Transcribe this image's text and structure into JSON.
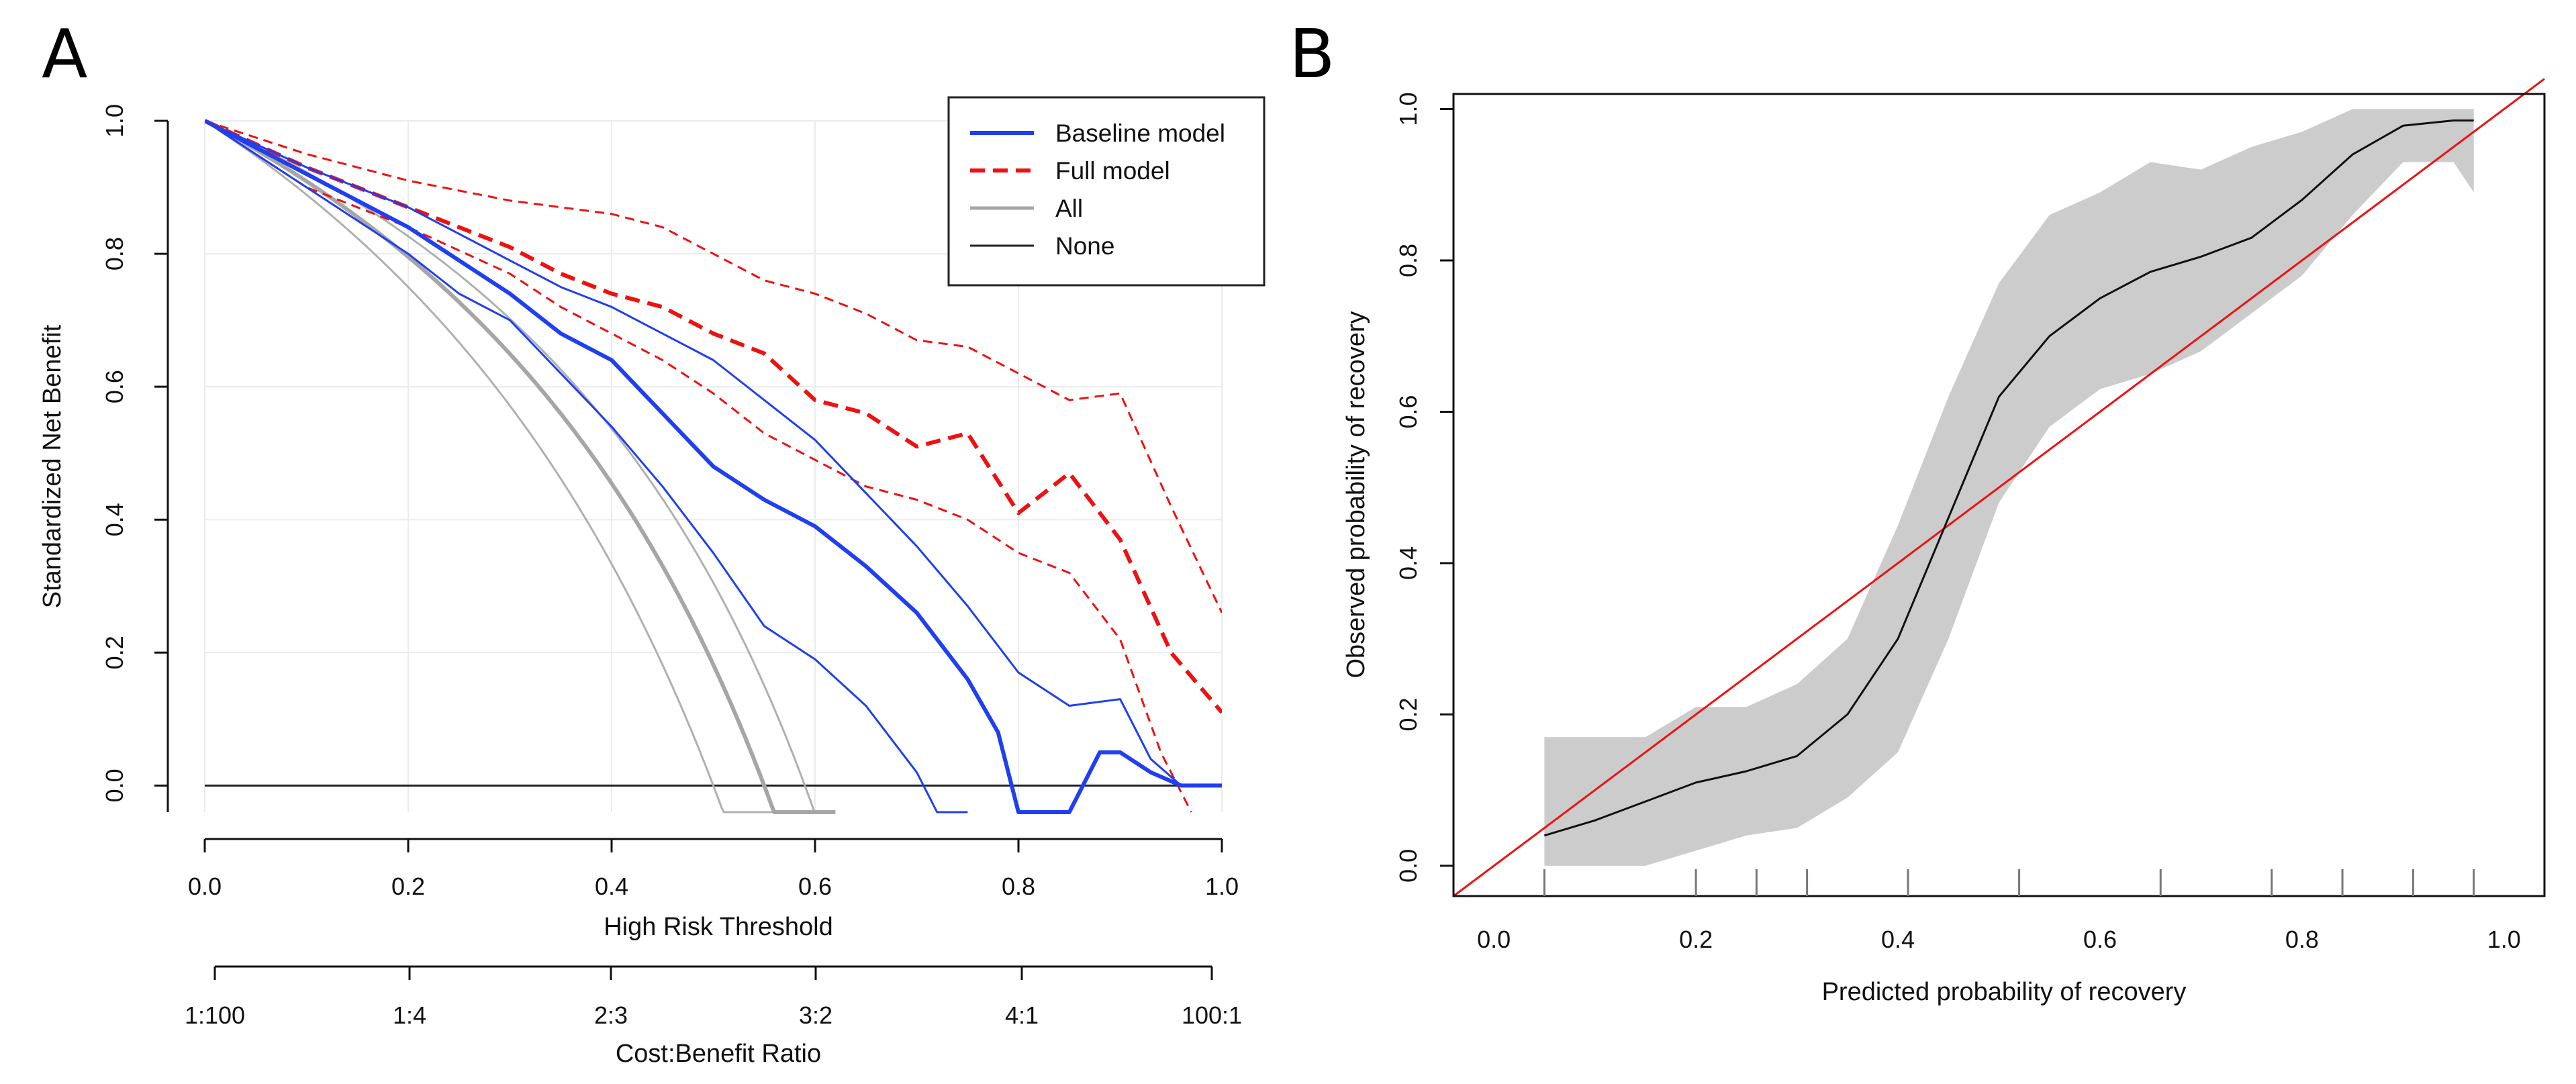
{
  "chart_data": [
    {
      "type": "line",
      "panel_label": "A",
      "title": "",
      "xlabel": "High Risk Threshold",
      "ylabel": "Standardized Net Benefit",
      "xlim": [
        0,
        1
      ],
      "ylim": [
        -0.04,
        1.0
      ],
      "grid": true,
      "x_ticks": [
        "0.0",
        "0.2",
        "0.4",
        "0.6",
        "0.8",
        "1.0"
      ],
      "y_ticks": [
        "0.0",
        "0.2",
        "0.4",
        "0.6",
        "0.8",
        "1.0"
      ],
      "secondary_axis": {
        "label": "Cost:Benefit Ratio",
        "ticks": [
          "1:100",
          "1:4",
          "2:3",
          "3:2",
          "4:1",
          "100:1"
        ]
      },
      "legend": {
        "position": "top-right",
        "entries": [
          "Baseline model",
          "Full model",
          "All",
          "None"
        ]
      },
      "series": [
        {
          "name": "Baseline model",
          "color": "#1f3ff0",
          "style": "solid",
          "width": "thick",
          "x": [
            0,
            0.1,
            0.2,
            0.3,
            0.35,
            0.4,
            0.45,
            0.5,
            0.55,
            0.6,
            0.65,
            0.7,
            0.75,
            0.78,
            0.8,
            0.85,
            0.88,
            0.9,
            0.93,
            0.96,
            1.0
          ],
          "y": [
            1.0,
            0.92,
            0.84,
            0.74,
            0.68,
            0.64,
            0.56,
            0.48,
            0.43,
            0.39,
            0.33,
            0.26,
            0.16,
            0.08,
            -0.04,
            -0.04,
            0.05,
            0.05,
            0.02,
            0.0,
            0.0
          ]
        },
        {
          "name": "Baseline upper CI",
          "color": "#1f3ff0",
          "style": "solid",
          "width": "thin",
          "x": [
            0,
            0.1,
            0.2,
            0.3,
            0.35,
            0.4,
            0.45,
            0.5,
            0.55,
            0.6,
            0.65,
            0.7,
            0.75,
            0.8,
            0.85,
            0.9,
            0.93,
            0.96,
            1.0
          ],
          "y": [
            1.0,
            0.93,
            0.87,
            0.79,
            0.75,
            0.72,
            0.68,
            0.64,
            0.58,
            0.52,
            0.44,
            0.36,
            0.27,
            0.17,
            0.12,
            0.13,
            0.04,
            0.0,
            0.0
          ]
        },
        {
          "name": "Baseline lower CI",
          "color": "#1f3ff0",
          "style": "solid",
          "width": "thin",
          "x": [
            0,
            0.1,
            0.2,
            0.25,
            0.3,
            0.35,
            0.4,
            0.45,
            0.5,
            0.55,
            0.6,
            0.65,
            0.7,
            0.72,
            0.75
          ],
          "y": [
            1.0,
            0.9,
            0.8,
            0.74,
            0.7,
            0.62,
            0.54,
            0.45,
            0.35,
            0.24,
            0.19,
            0.12,
            0.02,
            -0.04,
            -0.04
          ]
        },
        {
          "name": "Full model",
          "color": "#ee1111",
          "style": "dashed",
          "width": "thick",
          "x": [
            0,
            0.1,
            0.2,
            0.3,
            0.35,
            0.4,
            0.45,
            0.5,
            0.55,
            0.6,
            0.65,
            0.7,
            0.75,
            0.8,
            0.85,
            0.9,
            0.95,
            1.0
          ],
          "y": [
            1.0,
            0.93,
            0.87,
            0.81,
            0.77,
            0.74,
            0.72,
            0.68,
            0.65,
            0.58,
            0.56,
            0.51,
            0.53,
            0.41,
            0.47,
            0.37,
            0.2,
            0.11
          ]
        },
        {
          "name": "Full model upper CI",
          "color": "#ee1111",
          "style": "dashed",
          "width": "thin",
          "x": [
            0,
            0.1,
            0.2,
            0.3,
            0.35,
            0.4,
            0.45,
            0.5,
            0.55,
            0.6,
            0.65,
            0.7,
            0.75,
            0.8,
            0.85,
            0.9,
            0.95,
            1.0
          ],
          "y": [
            1.0,
            0.95,
            0.91,
            0.88,
            0.87,
            0.86,
            0.84,
            0.8,
            0.76,
            0.74,
            0.71,
            0.67,
            0.66,
            0.62,
            0.58,
            0.59,
            0.42,
            0.26
          ]
        },
        {
          "name": "Full model lower CI",
          "color": "#ee1111",
          "style": "dashed",
          "width": "thin",
          "x": [
            0,
            0.1,
            0.2,
            0.3,
            0.35,
            0.4,
            0.45,
            0.5,
            0.55,
            0.6,
            0.65,
            0.7,
            0.75,
            0.8,
            0.85,
            0.9,
            0.94,
            0.97
          ],
          "y": [
            1.0,
            0.9,
            0.84,
            0.77,
            0.72,
            0.68,
            0.64,
            0.59,
            0.53,
            0.49,
            0.45,
            0.43,
            0.4,
            0.35,
            0.32,
            0.22,
            0.05,
            -0.04
          ]
        },
        {
          "name": "All",
          "color": "#a6a6a6",
          "style": "solid",
          "width": "thick",
          "prevalence": 0.55
        },
        {
          "name": "All lower",
          "color": "#b0b0b0",
          "style": "solid",
          "width": "thin",
          "prevalence": 0.5
        },
        {
          "name": "All upper",
          "color": "#b0b0b0",
          "style": "solid",
          "width": "thin",
          "prevalence": 0.59
        },
        {
          "name": "None",
          "color": "#222222",
          "style": "solid",
          "width": "thin",
          "x": [
            0,
            1.0
          ],
          "y": [
            0,
            0
          ]
        }
      ]
    },
    {
      "type": "line",
      "panel_label": "B",
      "title": "",
      "xlabel": "Predicted probability of recovery",
      "ylabel": "Observed probability of recovery",
      "xlim": [
        -0.04,
        1.04
      ],
      "ylim": [
        -0.04,
        1.02
      ],
      "grid": false,
      "x_ticks": [
        "0.0",
        "0.2",
        "0.4",
        "0.6",
        "0.8",
        "1.0"
      ],
      "y_ticks": [
        "0.0",
        "0.2",
        "0.4",
        "0.6",
        "0.8",
        "1.0"
      ],
      "series": [
        {
          "name": "Calibration curve",
          "color": "#111111",
          "x": [
            0.05,
            0.1,
            0.15,
            0.2,
            0.25,
            0.3,
            0.35,
            0.4,
            0.45,
            0.5,
            0.55,
            0.6,
            0.65,
            0.7,
            0.75,
            0.8,
            0.85,
            0.9,
            0.95,
            0.97
          ],
          "y": [
            0.04,
            0.06,
            0.085,
            0.11,
            0.125,
            0.145,
            0.2,
            0.3,
            0.46,
            0.62,
            0.7,
            0.75,
            0.785,
            0.805,
            0.83,
            0.88,
            0.94,
            0.978,
            0.985,
            0.985
          ]
        },
        {
          "name": "Confidence band upper",
          "color": "#cccccc",
          "x": [
            0.05,
            0.1,
            0.15,
            0.2,
            0.25,
            0.3,
            0.35,
            0.4,
            0.45,
            0.5,
            0.55,
            0.6,
            0.65,
            0.7,
            0.75,
            0.8,
            0.85,
            0.9,
            0.95,
            0.97
          ],
          "y": [
            0.17,
            0.17,
            0.17,
            0.21,
            0.21,
            0.24,
            0.3,
            0.45,
            0.62,
            0.77,
            0.86,
            0.89,
            0.93,
            0.92,
            0.95,
            0.97,
            1.0,
            1.0,
            1.0,
            1.0
          ]
        },
        {
          "name": "Confidence band lower",
          "color": "#cccccc",
          "x": [
            0.05,
            0.1,
            0.15,
            0.2,
            0.25,
            0.3,
            0.35,
            0.4,
            0.45,
            0.5,
            0.55,
            0.6,
            0.65,
            0.7,
            0.75,
            0.8,
            0.85,
            0.9,
            0.95,
            0.97
          ],
          "y": [
            0.0,
            0.0,
            0.0,
            0.02,
            0.04,
            0.05,
            0.09,
            0.15,
            0.3,
            0.48,
            0.58,
            0.63,
            0.65,
            0.68,
            0.73,
            0.78,
            0.86,
            0.93,
            0.93,
            0.89
          ]
        },
        {
          "name": "Ideal line",
          "color": "#ee1111",
          "x": [
            -0.04,
            1.04
          ],
          "y": [
            -0.04,
            1.04
          ]
        }
      ],
      "rug": [
        0.05,
        0.2,
        0.26,
        0.31,
        0.41,
        0.52,
        0.66,
        0.77,
        0.84,
        0.91,
        0.97
      ]
    }
  ]
}
